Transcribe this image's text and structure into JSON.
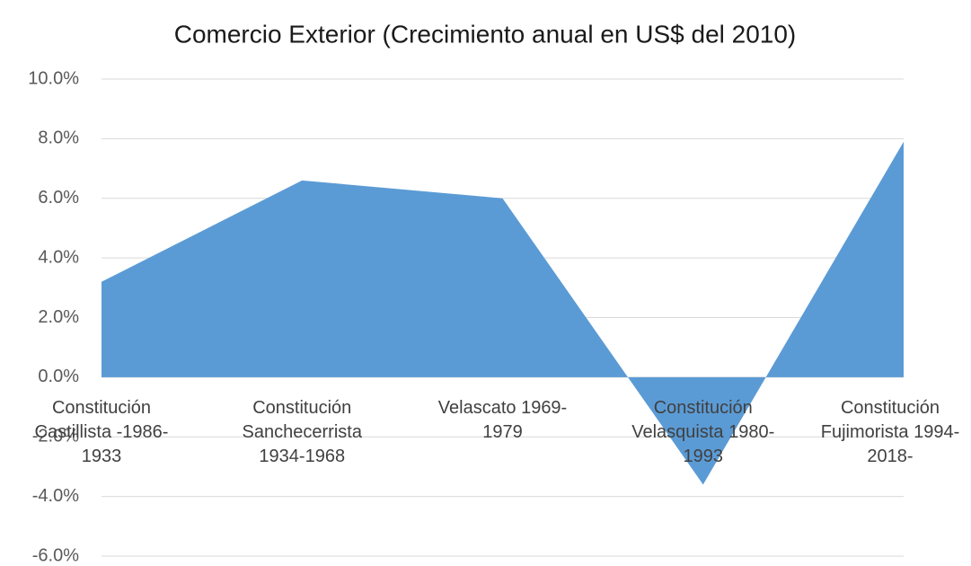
{
  "chart_data": {
    "type": "area",
    "title": "Comercio Exterior (Crecimiento anual en US$ del 2010)",
    "categories": [
      "Constitución Castillista -1986-1933",
      "Constitución Sanchecerrista 1934-1968",
      "Velascato 1969-1979",
      "Constitución Velasquista 1980-1993",
      "Constitución Fujimorista 1994-2018-"
    ],
    "values": [
      3.2,
      6.6,
      6.0,
      -3.6,
      7.9
    ],
    "color": "#5b9bd5",
    "ylim": [
      -6,
      10
    ],
    "yticks": [
      {
        "value": -6,
        "label": "-6.0%"
      },
      {
        "value": -4,
        "label": "-4.0%"
      },
      {
        "value": -2,
        "label": "-2.0%"
      },
      {
        "value": 0,
        "label": "0.0%"
      },
      {
        "value": 2,
        "label": "2.0%"
      },
      {
        "value": 4,
        "label": "4.0%"
      },
      {
        "value": 6,
        "label": "6.0%"
      },
      {
        "value": 8,
        "label": "8.0%"
      },
      {
        "value": 10,
        "label": "10.0%"
      }
    ],
    "grid": true
  }
}
